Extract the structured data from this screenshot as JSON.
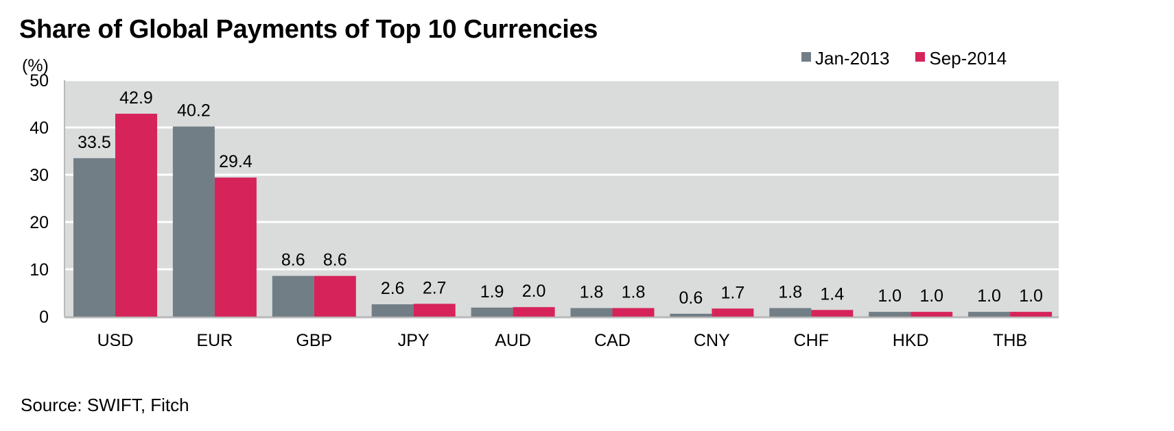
{
  "chart_data": {
    "type": "bar",
    "title": "Share of Global Payments of Top 10 Currencies",
    "ylabel": "(%)",
    "source": "Source: SWIFT, Fitch",
    "ylim": [
      0,
      50
    ],
    "yticks": [
      "0",
      "10",
      "20",
      "30",
      "40",
      "50"
    ],
    "grid": true,
    "legend_position": "top-right",
    "categories": [
      "USD",
      "EUR",
      "GBP",
      "JPY",
      "AUD",
      "CAD",
      "CNY",
      "CHF",
      "HKD",
      "THB"
    ],
    "series": [
      {
        "name": "Jan-2013",
        "color": "#727e86",
        "values": [
          33.5,
          40.2,
          8.6,
          2.6,
          1.9,
          1.8,
          0.6,
          1.8,
          1.0,
          1.0
        ],
        "labels": [
          "33.5",
          "40.2",
          "8.6",
          "2.6",
          "1.9",
          "1.8",
          "0.6",
          "1.8",
          "1.0",
          "1.0"
        ]
      },
      {
        "name": "Sep-2014",
        "color": "#d6245a",
        "values": [
          42.9,
          29.4,
          8.6,
          2.7,
          2.0,
          1.8,
          1.7,
          1.4,
          1.0,
          1.0
        ],
        "labels": [
          "42.9",
          "29.4",
          "8.6",
          "2.7",
          "2.0",
          "1.8",
          "1.7",
          "1.4",
          "1.0",
          "1.0"
        ]
      }
    ],
    "plot_background": "#dadbdb",
    "gridline_color": "#ffffff"
  }
}
